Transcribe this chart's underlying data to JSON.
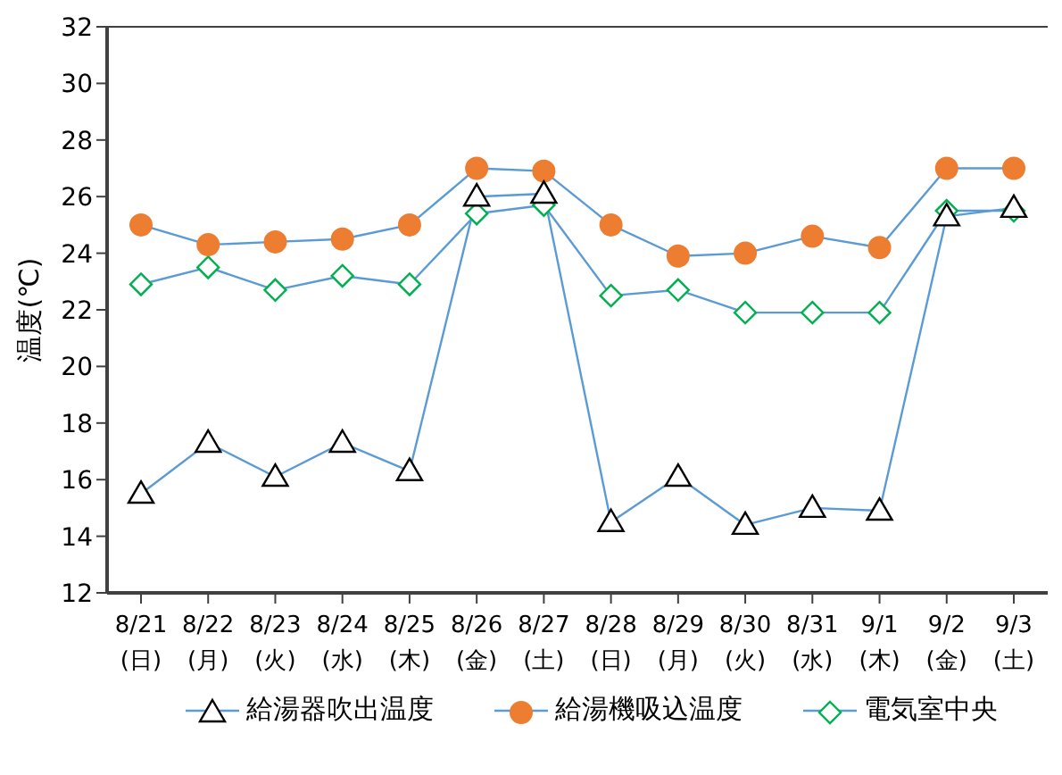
{
  "chart_data": {
    "type": "line",
    "ylabel": "温度(℃)",
    "categories": [
      "8/21\n(日)",
      "8/22\n(月)",
      "8/23\n(火)",
      "8/24\n(水)",
      "8/25\n(木)",
      "8/26\n(金)",
      "8/27\n(土)",
      "8/28\n(日)",
      "8/29\n(月)",
      "8/30\n(火)",
      "8/31\n(水)",
      "9/1\n(木)",
      "9/2\n(金)",
      "9/3\n(土)"
    ],
    "series": [
      {
        "name": "給湯器吹出温度",
        "color": "#000000",
        "marker": "triangle",
        "values": [
          15.5,
          17.3,
          16.1,
          17.3,
          16.3,
          26.0,
          26.1,
          14.5,
          16.1,
          14.4,
          15.0,
          14.9,
          25.3,
          25.6
        ]
      },
      {
        "name": "給湯機吸込温度",
        "color": "#ed7d31",
        "marker": "circle",
        "values": [
          25.0,
          24.3,
          24.4,
          24.5,
          25.0,
          27.0,
          26.9,
          25.0,
          23.9,
          24.0,
          24.6,
          24.2,
          27.0,
          27.0
        ]
      },
      {
        "name": "電気室中央",
        "color": "#00b050",
        "marker": "diamond",
        "values": [
          22.9,
          23.5,
          22.7,
          23.2,
          22.9,
          25.4,
          25.7,
          22.5,
          22.7,
          21.9,
          21.9,
          21.9,
          25.5,
          25.5
        ]
      }
    ],
    "ylim": [
      12,
      32
    ],
    "yticks": [
      12,
      14,
      16,
      18,
      20,
      22,
      24,
      26,
      28,
      30,
      32
    ],
    "grid": false,
    "legend": "bottom"
  }
}
